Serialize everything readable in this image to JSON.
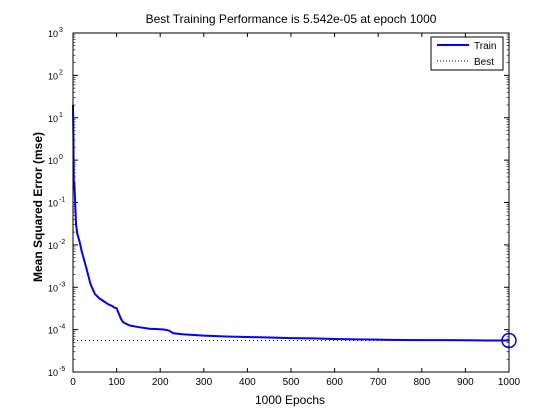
{
  "chart_data": {
    "type": "line",
    "title": "Best Training Performance is 5.542e-05 at epoch 1000",
    "xlabel": "1000 Epochs",
    "ylabel": "Mean Squared Error  (mse)",
    "xlim": [
      0,
      1000
    ],
    "ylim": [
      1e-05,
      1000
    ],
    "yscale": "log",
    "grid": false,
    "legend_position": "top-right",
    "x_ticks": [
      {
        "value": 0,
        "label": "0"
      },
      {
        "value": 100,
        "label": "100"
      },
      {
        "value": 200,
        "label": "200"
      },
      {
        "value": 300,
        "label": "300"
      },
      {
        "value": 400,
        "label": "400"
      },
      {
        "value": 500,
        "label": "500"
      },
      {
        "value": 600,
        "label": "600"
      },
      {
        "value": 700,
        "label": "700"
      },
      {
        "value": 800,
        "label": "800"
      },
      {
        "value": 900,
        "label": "900"
      },
      {
        "value": 1000,
        "label": "1000"
      }
    ],
    "y_ticks": [
      {
        "value": 1e-05,
        "base": "10",
        "exp": "-5"
      },
      {
        "value": 0.0001,
        "base": "10",
        "exp": "-4"
      },
      {
        "value": 0.001,
        "base": "10",
        "exp": "-3"
      },
      {
        "value": 0.01,
        "base": "10",
        "exp": "-2"
      },
      {
        "value": 0.1,
        "base": "10",
        "exp": "-1"
      },
      {
        "value": 1,
        "base": "10",
        "exp": "0"
      },
      {
        "value": 10,
        "base": "10",
        "exp": "1"
      },
      {
        "value": 100,
        "base": "10",
        "exp": "2"
      },
      {
        "value": 1000,
        "base": "10",
        "exp": "3"
      }
    ],
    "series": [
      {
        "name": "Train",
        "color": "#0000ff",
        "style": "solid",
        "x": [
          0,
          1,
          2,
          3,
          5,
          7,
          10,
          15,
          20,
          30,
          40,
          50,
          60,
          70,
          80,
          90,
          95,
          100,
          105,
          110,
          115,
          120,
          130,
          150,
          175,
          200,
          210,
          220,
          230,
          250,
          300,
          350,
          400,
          450,
          500,
          550,
          600,
          650,
          700,
          750,
          800,
          850,
          900,
          950,
          1000
        ],
        "y": [
          20,
          3,
          0.2,
          0.3,
          0.1,
          0.03,
          0.018,
          0.012,
          0.007,
          0.003,
          0.0012,
          0.0007,
          0.00055,
          0.00047,
          0.0004,
          0.00036,
          0.00033,
          0.00032,
          0.00024,
          0.00018,
          0.00015,
          0.00014,
          0.000125,
          0.000115,
          0.000105,
          0.000102,
          0.0001,
          9.5e-05,
          8.2e-05,
          7.8e-05,
          7.2e-05,
          6.9e-05,
          6.7e-05,
          6.5e-05,
          6.3e-05,
          6.2e-05,
          6e-05,
          5.9e-05,
          5.8e-05,
          5.7e-05,
          5.65e-05,
          5.65e-05,
          5.6e-05,
          5.55e-05,
          5.542e-05
        ]
      },
      {
        "name": "Best",
        "color": "#000000",
        "style": "dotted",
        "y_value": 5.542e-05,
        "x_value": 1000
      }
    ],
    "best_point": {
      "x": 1000,
      "y": 5.542e-05,
      "marker": "circle",
      "color": "#0000ff"
    }
  }
}
